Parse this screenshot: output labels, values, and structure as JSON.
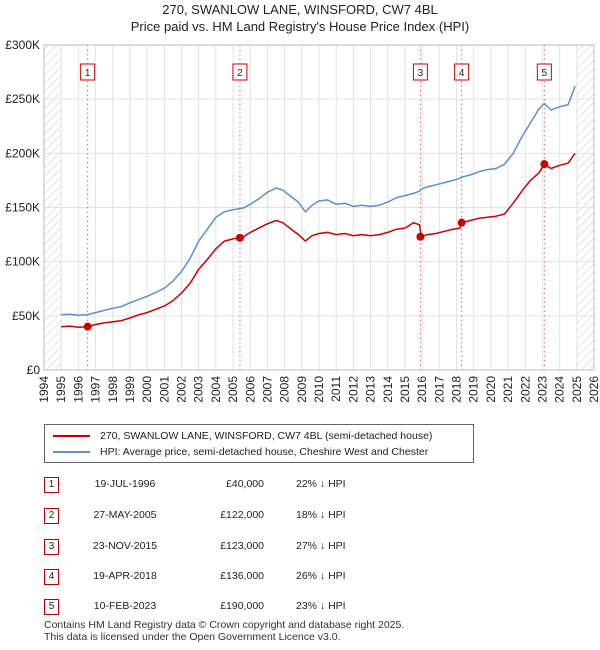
{
  "chart_data": {
    "type": "line",
    "title": "270, SWANLOW LANE, WINSFORD, CW7 4BL",
    "subtitle": "Price paid vs. HM Land Registry's House Price Index (HPI)",
    "xlabel": "",
    "ylabel": "",
    "xlim": [
      1994,
      2026
    ],
    "ylim": [
      0,
      300000
    ],
    "y_ticks": [
      {
        "value": 0,
        "label": "£0"
      },
      {
        "value": 50000,
        "label": "£50K"
      },
      {
        "value": 100000,
        "label": "£100K"
      },
      {
        "value": 150000,
        "label": "£150K"
      },
      {
        "value": 200000,
        "label": "£200K"
      },
      {
        "value": 250000,
        "label": "£250K"
      },
      {
        "value": 300000,
        "label": "£300K"
      }
    ],
    "x_ticks": [
      1994,
      1995,
      1996,
      1997,
      1998,
      1999,
      2000,
      2001,
      2002,
      2003,
      2004,
      2005,
      2006,
      2007,
      2008,
      2009,
      2010,
      2011,
      2012,
      2013,
      2014,
      2015,
      2016,
      2017,
      2018,
      2019,
      2020,
      2021,
      2022,
      2023,
      2024,
      2025,
      2026
    ],
    "grid": true,
    "hatched_ranges": [
      [
        1994,
        1995
      ],
      [
        2025,
        2026
      ]
    ],
    "series": [
      {
        "name": "270, SWANLOW LANE, WINSFORD, CW7 4BL (semi-detached house)",
        "color": "#cc0000",
        "x": [
          1995.0,
          1995.5,
          1996.0,
          1996.54,
          1997.0,
          1997.5,
          1998.0,
          1998.5,
          1999.0,
          1999.5,
          2000.0,
          2000.5,
          2001.0,
          2001.5,
          2002.0,
          2002.5,
          2003.0,
          2003.5,
          2004.0,
          2004.5,
          2005.0,
          2005.4,
          2005.6,
          2006.0,
          2006.5,
          2007.0,
          2007.5,
          2007.9,
          2008.3,
          2008.8,
          2009.2,
          2009.6,
          2010.0,
          2010.5,
          2011.0,
          2011.5,
          2012.0,
          2012.5,
          2013.0,
          2013.5,
          2014.0,
          2014.5,
          2015.0,
          2015.5,
          2015.85,
          2015.95,
          2016.3,
          2016.8,
          2017.3,
          2017.8,
          2018.2,
          2018.3,
          2018.8,
          2019.3,
          2019.8,
          2020.3,
          2020.8,
          2021.3,
          2021.8,
          2022.3,
          2022.8,
          2023.11,
          2023.5,
          2024.0,
          2024.5,
          2024.9
        ],
        "y": [
          40000,
          40500,
          39500,
          40000,
          42000,
          43500,
          44500,
          45500,
          48000,
          51000,
          53000,
          56000,
          59000,
          64000,
          71000,
          80000,
          93000,
          102000,
          112000,
          119000,
          121000,
          122000,
          123000,
          127000,
          131000,
          135000,
          138000,
          136000,
          131000,
          125000,
          119000,
          124000,
          126000,
          127000,
          125000,
          126000,
          124000,
          125000,
          124000,
          125000,
          127000,
          130000,
          131000,
          136000,
          134000,
          123000,
          125000,
          126000,
          128000,
          130000,
          131000,
          136000,
          138000,
          140000,
          141000,
          142000,
          144000,
          154000,
          165000,
          175000,
          182000,
          190000,
          186000,
          189000,
          191000,
          200000
        ]
      },
      {
        "name": "HPI: Average price, semi-detached house, Cheshire West and Chester",
        "color": "#5a8fd0",
        "x": [
          1995.0,
          1995.5,
          1996.0,
          1996.54,
          1997.0,
          1997.5,
          1998.0,
          1998.5,
          1999.0,
          1999.5,
          2000.0,
          2000.5,
          2001.0,
          2001.5,
          2002.0,
          2002.5,
          2003.0,
          2003.5,
          2004.0,
          2004.5,
          2005.0,
          2005.4,
          2005.6,
          2006.0,
          2006.5,
          2007.0,
          2007.5,
          2007.9,
          2008.3,
          2008.8,
          2009.2,
          2009.6,
          2010.0,
          2010.5,
          2011.0,
          2011.5,
          2012.0,
          2012.5,
          2013.0,
          2013.5,
          2014.0,
          2014.5,
          2015.0,
          2015.5,
          2015.85,
          2015.95,
          2016.3,
          2016.8,
          2017.3,
          2017.8,
          2018.2,
          2018.3,
          2018.8,
          2019.3,
          2019.8,
          2020.3,
          2020.8,
          2021.3,
          2021.8,
          2022.3,
          2022.8,
          2023.11,
          2023.5,
          2024.0,
          2024.5,
          2024.9
        ],
        "y": [
          51000,
          51500,
          50500,
          51200,
          53000,
          55000,
          57000,
          58500,
          62000,
          65000,
          68000,
          71500,
          75500,
          82000,
          91000,
          103000,
          119000,
          130000,
          141000,
          146000,
          148000,
          149000,
          149500,
          153000,
          158000,
          164000,
          168000,
          166000,
          161000,
          155000,
          146000,
          152000,
          156000,
          157000,
          153000,
          154000,
          151000,
          152000,
          151000,
          152000,
          155000,
          159000,
          161000,
          163000,
          165000,
          167000,
          169000,
          171000,
          173000,
          175000,
          177000,
          178000,
          180000,
          183000,
          185000,
          186000,
          190000,
          200000,
          215000,
          228000,
          241000,
          246000,
          240000,
          243000,
          245000,
          262000
        ]
      }
    ],
    "sale_markers": [
      {
        "label": "1",
        "year": 1996.54,
        "price": 40000
      },
      {
        "label": "2",
        "year": 2005.4,
        "price": 122000
      },
      {
        "label": "3",
        "year": 2015.9,
        "price": 123000
      },
      {
        "label": "4",
        "year": 2018.3,
        "price": 136000
      },
      {
        "label": "5",
        "year": 2023.11,
        "price": 190000
      }
    ]
  },
  "legend": [
    {
      "label": "270, SWANLOW LANE, WINSFORD, CW7 4BL (semi-detached house)",
      "color": "#cc0000"
    },
    {
      "label": "HPI: Average price, semi-detached house, Cheshire West and Chester",
      "color": "#5a8fd0"
    }
  ],
  "sales": [
    {
      "num": "1",
      "date": "19-JUL-1996",
      "price": "£40,000",
      "delta": "22% ↓ HPI"
    },
    {
      "num": "2",
      "date": "27-MAY-2005",
      "price": "£122,000",
      "delta": "18% ↓ HPI"
    },
    {
      "num": "3",
      "date": "23-NOV-2015",
      "price": "£123,000",
      "delta": "27% ↓ HPI"
    },
    {
      "num": "4",
      "date": "19-APR-2018",
      "price": "£136,000",
      "delta": "26% ↓ HPI"
    },
    {
      "num": "5",
      "date": "10-FEB-2023",
      "price": "£190,000",
      "delta": "23% ↓ HPI"
    }
  ],
  "footer": {
    "line1": "Contains HM Land Registry data © Crown copyright and database right 2025.",
    "line2": "This data is licensed under the Open Government Licence v3.0."
  }
}
